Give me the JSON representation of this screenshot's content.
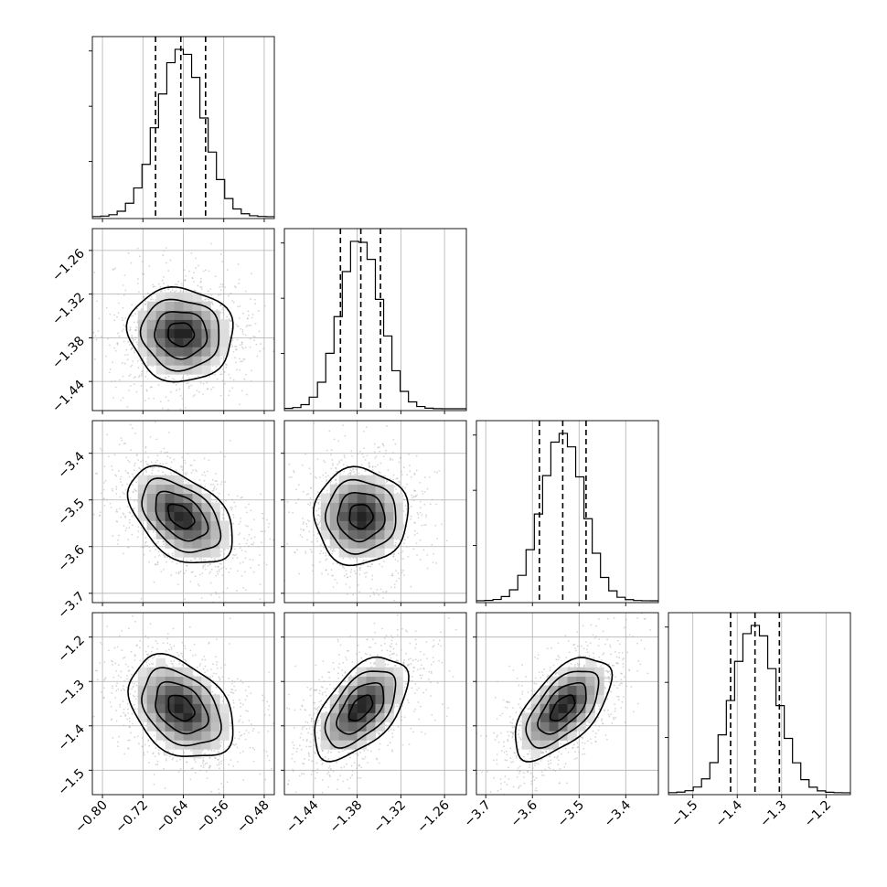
{
  "chart_data": {
    "type": "corner",
    "title": "",
    "parameters": [
      {
        "range": [
          -0.82,
          -0.46
        ],
        "mean": -0.645,
        "sigma": 0.045,
        "quantiles": [
          -0.695,
          -0.645,
          -0.596
        ],
        "ticks": [
          -0.8,
          -0.72,
          -0.64,
          -0.56,
          -0.48
        ],
        "tick_labels": [
          "−0.80",
          "−0.72",
          "−0.64",
          "−0.56",
          "−0.48"
        ]
      },
      {
        "range": [
          -1.48,
          -1.23
        ],
        "mean": -1.375,
        "sigma": 0.028,
        "quantiles": [
          -1.403,
          -1.375,
          -1.348
        ],
        "ticks": [
          -1.44,
          -1.38,
          -1.32,
          -1.26
        ],
        "tick_labels": [
          "−1.44",
          "−1.38",
          "−1.32",
          "−1.26"
        ]
      },
      {
        "range": [
          -3.72,
          -3.33
        ],
        "mean": -3.535,
        "sigma": 0.045,
        "quantiles": [
          -3.585,
          -3.535,
          -3.485
        ],
        "ticks": [
          -3.7,
          -3.6,
          -3.5,
          -3.4
        ],
        "tick_labels": [
          "−3.7",
          "−3.6",
          "−3.5",
          "−3.4"
        ]
      },
      {
        "range": [
          -1.555,
          -1.145
        ],
        "mean": -1.36,
        "sigma": 0.05,
        "quantiles": [
          -1.415,
          -1.36,
          -1.305
        ],
        "ticks": [
          -1.5,
          -1.4,
          -1.3,
          -1.2
        ],
        "tick_labels": [
          "−1.5",
          "−1.4",
          "−1.3",
          "−1.2"
        ]
      }
    ],
    "correlations": [
      {
        "pair": [
          1,
          0
        ],
        "rho": -0.05
      },
      {
        "pair": [
          2,
          0
        ],
        "rho": -0.45
      },
      {
        "pair": [
          2,
          1
        ],
        "rho": 0.0
      },
      {
        "pair": [
          3,
          0
        ],
        "rho": -0.35
      },
      {
        "pair": [
          3,
          1
        ],
        "rho": 0.55
      },
      {
        "pair": [
          3,
          2
        ],
        "rho": 0.6
      }
    ],
    "contour_levels_sigma": [
      0.5,
      1.0,
      1.5,
      2.0
    ],
    "grid": true,
    "colors": {
      "line": "#000000",
      "grid": "#b0b0b0",
      "points": "#b5b5b5",
      "density_high": "#2b2b2b",
      "density_low": "#ffffff"
    }
  }
}
